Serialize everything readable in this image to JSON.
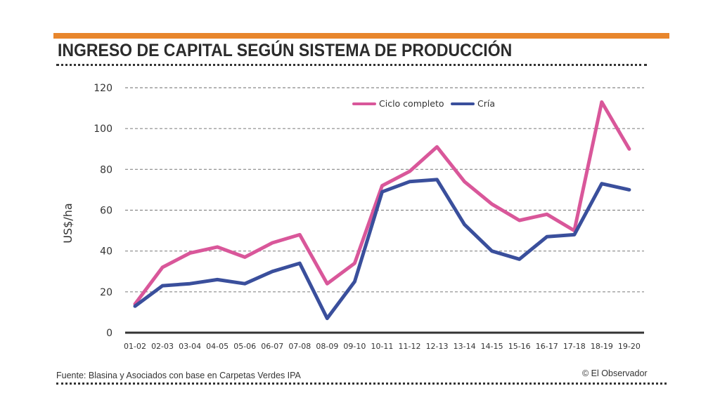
{
  "header": {
    "title": "INGRESO DE CAPITAL SEGÚN SISTEMA DE PRODUCCIÓN",
    "accent_color": "#e8862c"
  },
  "footer": {
    "source": "Fuente: Blasina y Asociados con base en Carpetas Verdes IPA",
    "credit": "© El Observador"
  },
  "chart_data": {
    "type": "line",
    "title": "INGRESO DE CAPITAL SEGÚN SISTEMA DE PRODUCCIÓN",
    "xlabel": "",
    "ylabel": "US$/ha",
    "ylim": [
      0,
      120
    ],
    "yticks": [
      0,
      20,
      40,
      60,
      80,
      100,
      120
    ],
    "ytick_labels": [
      "0",
      "20",
      "40",
      "60",
      "80",
      "100",
      "120"
    ],
    "grid": true,
    "legend_position": "top-center",
    "categories": [
      "01-02",
      "02-03",
      "03-04",
      "04-05",
      "05-06",
      "06-07",
      "07-08",
      "08-09",
      "09-10",
      "10-11",
      "11-12",
      "12-13",
      "13-14",
      "14-15",
      "15-16",
      "16-17",
      "17-18",
      "18-19",
      "19-20"
    ],
    "series": [
      {
        "name": "Ciclo completo",
        "color": "#d9579a",
        "values": [
          14,
          32,
          39,
          42,
          37,
          44,
          48,
          24,
          34,
          72,
          79,
          91,
          74,
          63,
          55,
          58,
          50,
          113,
          90
        ]
      },
      {
        "name": "Cría",
        "color": "#3a4f9c",
        "values": [
          13,
          23,
          24,
          26,
          24,
          30,
          34,
          7,
          25,
          69,
          74,
          75,
          53,
          40,
          36,
          47,
          48,
          73,
          70
        ]
      }
    ]
  }
}
